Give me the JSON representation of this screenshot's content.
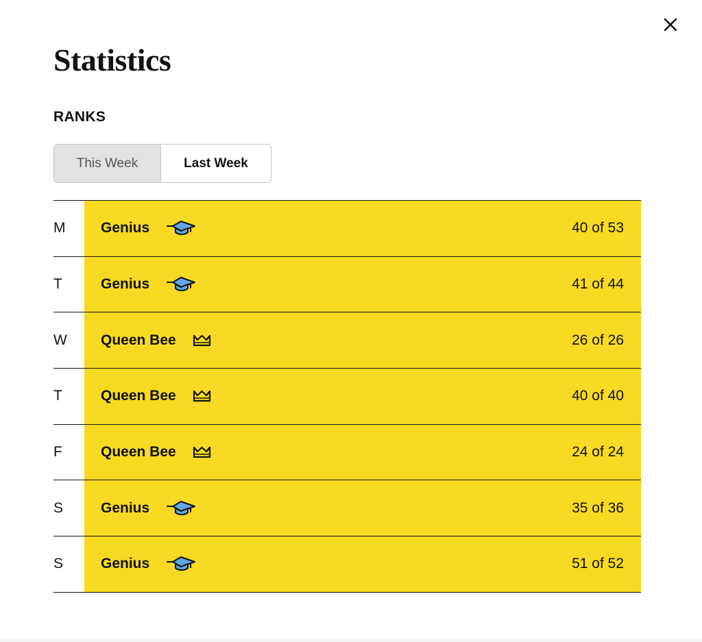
{
  "dialog": {
    "title": "Statistics",
    "close_icon": "close-icon"
  },
  "ranks": {
    "section_label": "RANKS",
    "tabs": [
      {
        "label": "This Week"
      },
      {
        "label": "Last Week",
        "selected": true
      }
    ],
    "rows": [
      {
        "day": "M",
        "rank": "Genius",
        "icon": "graduation-cap-icon",
        "score": "40 of 53"
      },
      {
        "day": "T",
        "rank": "Genius",
        "icon": "graduation-cap-icon",
        "score": "41 of 44"
      },
      {
        "day": "W",
        "rank": "Queen Bee",
        "icon": "crown-icon",
        "score": "26 of 26"
      },
      {
        "day": "T",
        "rank": "Queen Bee",
        "icon": "crown-icon",
        "score": "40 of 40"
      },
      {
        "day": "F",
        "rank": "Queen Bee",
        "icon": "crown-icon",
        "score": "24 of 24"
      },
      {
        "day": "S",
        "rank": "Genius",
        "icon": "graduation-cap-icon",
        "score": "35 of 36"
      },
      {
        "day": "S",
        "rank": "Genius",
        "icon": "graduation-cap-icon",
        "score": "51 of 52"
      }
    ]
  },
  "colors": {
    "rank_highlight": "#f7da21",
    "cap_fill": "#5fa8e0",
    "text": "#121212"
  }
}
